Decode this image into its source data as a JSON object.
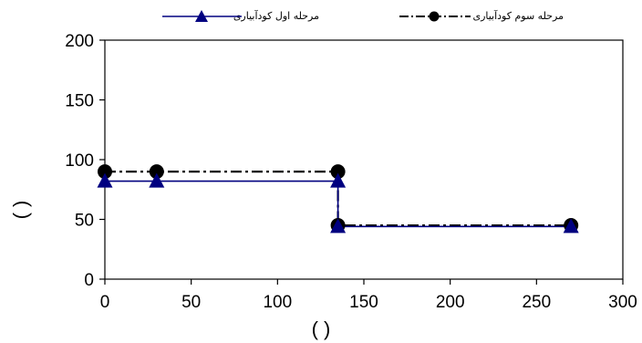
{
  "chart_data": {
    "type": "line",
    "title": "",
    "xlabel": "( )",
    "ylabel": "( )",
    "xlim": [
      0,
      300
    ],
    "ylim": [
      0,
      200
    ],
    "xticks": [
      "0",
      "50",
      "100",
      "150",
      "200",
      "250",
      "300"
    ],
    "yticks": [
      "0",
      "50",
      "100",
      "150",
      "200"
    ],
    "grid": false,
    "legend_position": "top",
    "series": [
      {
        "name": "مرحله اول کودآبیاری",
        "color": "#000080",
        "marker": "triangle",
        "line_style": "solid",
        "step_points": [
          [
            0,
            82
          ],
          [
            135,
            82
          ],
          [
            135,
            44
          ],
          [
            270,
            44
          ]
        ],
        "markers": [
          [
            0,
            82
          ],
          [
            30,
            82
          ],
          [
            135,
            82
          ],
          [
            135,
            44
          ],
          [
            270,
            44
          ]
        ]
      },
      {
        "name": "مرحله سوم کودآبیاری",
        "color": "#000000",
        "marker": "circle",
        "line_style": "dash-dot",
        "step_points": [
          [
            0,
            90
          ],
          [
            135,
            90
          ],
          [
            135,
            45
          ],
          [
            270,
            45
          ]
        ],
        "markers": [
          [
            0,
            90
          ],
          [
            30,
            90
          ],
          [
            135,
            90
          ],
          [
            135,
            45
          ],
          [
            270,
            45
          ]
        ]
      }
    ]
  }
}
